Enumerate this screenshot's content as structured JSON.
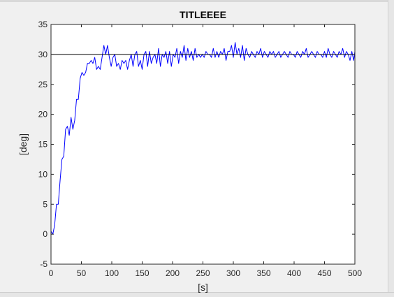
{
  "colors": {
    "window_bg": "#f0f0f0",
    "plot_bg": "#ffffff",
    "series_signal": "#0000ff",
    "series_reference": "#000000",
    "axes": "#262626"
  },
  "chart_data": {
    "type": "line",
    "title": "TITLEEEE",
    "xlabel": "[s]",
    "ylabel": "[deg]",
    "xlim": [
      0,
      500
    ],
    "ylim": [
      -5,
      35
    ],
    "xticks": [
      0,
      50,
      100,
      150,
      200,
      250,
      300,
      350,
      400,
      450,
      500
    ],
    "yticks": [
      -5,
      0,
      5,
      10,
      15,
      20,
      25,
      30,
      35
    ],
    "grid": false,
    "legend": "none",
    "series": [
      {
        "x": [
          0,
          3,
          6,
          9,
          12,
          15,
          18,
          21,
          24,
          27,
          30,
          33,
          36,
          39,
          42,
          45,
          48,
          51,
          54,
          57,
          60,
          63,
          66,
          69,
          72,
          75,
          78,
          81,
          84,
          87,
          90,
          93,
          96,
          99,
          102,
          105,
          108,
          111,
          114,
          117,
          120,
          123,
          126,
          129,
          132,
          135,
          138,
          141,
          144,
          147,
          150,
          153,
          156,
          159,
          162,
          165,
          168,
          171,
          174,
          177,
          180,
          183,
          186,
          189,
          192,
          195,
          198,
          201,
          204,
          207,
          210,
          213,
          216,
          219,
          222,
          225,
          228,
          231,
          234,
          237,
          240,
          243,
          246,
          249,
          252,
          255,
          258,
          261,
          264,
          267,
          270,
          273,
          276,
          279,
          282,
          285,
          288,
          291,
          294,
          297,
          300,
          303,
          306,
          309,
          312,
          315,
          318,
          321,
          324,
          327,
          330,
          333,
          336,
          339,
          342,
          345,
          348,
          351,
          354,
          357,
          360,
          363,
          366,
          369,
          372,
          375,
          378,
          381,
          384,
          387,
          390,
          393,
          396,
          399,
          402,
          405,
          408,
          411,
          414,
          417,
          420,
          423,
          426,
          429,
          432,
          435,
          438,
          441,
          444,
          447,
          450,
          453,
          456,
          459,
          462,
          465,
          468,
          471,
          474,
          477,
          480,
          483,
          486,
          489,
          492,
          495,
          498,
          500
        ],
        "y": [
          0.5,
          0,
          1.5,
          5,
          5,
          9,
          12.5,
          13,
          17.5,
          18,
          16.5,
          19.5,
          17.5,
          19,
          22.5,
          22.5,
          26,
          27,
          26.5,
          27,
          28.5,
          28.5,
          29,
          28.5,
          29.5,
          27.5,
          28,
          27.5,
          29.5,
          31.5,
          30,
          31.5,
          29.5,
          28,
          29.5,
          30,
          28,
          28.5,
          27.5,
          29,
          28.5,
          29,
          27.5,
          29,
          30,
          28,
          30,
          30.5,
          28,
          29,
          27.5,
          30,
          30.5,
          28,
          30.5,
          28.5,
          29.5,
          30,
          28.5,
          31,
          28,
          30,
          29.5,
          30.5,
          28.5,
          30.5,
          28,
          30,
          29.5,
          31,
          28.5,
          30.5,
          29.5,
          31.5,
          29,
          31,
          29.5,
          30.5,
          29,
          31,
          29.5,
          30,
          29.5,
          30,
          29.5,
          30.5,
          30,
          30,
          29.5,
          31,
          29.5,
          30.5,
          29.5,
          30.5,
          30,
          31,
          29,
          30.5,
          30.5,
          31.5,
          29.5,
          32,
          30,
          31,
          29.5,
          31.5,
          29,
          31,
          30,
          29.5,
          30.5,
          30,
          29.5,
          30.5,
          30,
          31,
          29.5,
          30.5,
          30,
          29.5,
          30.5,
          30,
          30.5,
          29.5,
          30,
          30.5,
          29.5,
          30,
          30.5,
          30,
          29.5,
          30.5,
          30,
          30,
          29.5,
          30.5,
          30,
          29.5,
          30.5,
          30,
          31,
          29.5,
          30,
          30.5,
          30,
          29.5,
          30.5,
          30,
          30,
          29.5,
          30.5,
          29.5,
          31,
          30,
          29.5,
          30.5,
          30,
          29.5,
          30.5,
          30,
          31,
          29.5,
          30.5,
          30,
          29,
          30.5,
          29,
          30.5
        ]
      },
      {
        "x": [
          0,
          500
        ],
        "y": [
          30,
          30
        ]
      }
    ]
  }
}
